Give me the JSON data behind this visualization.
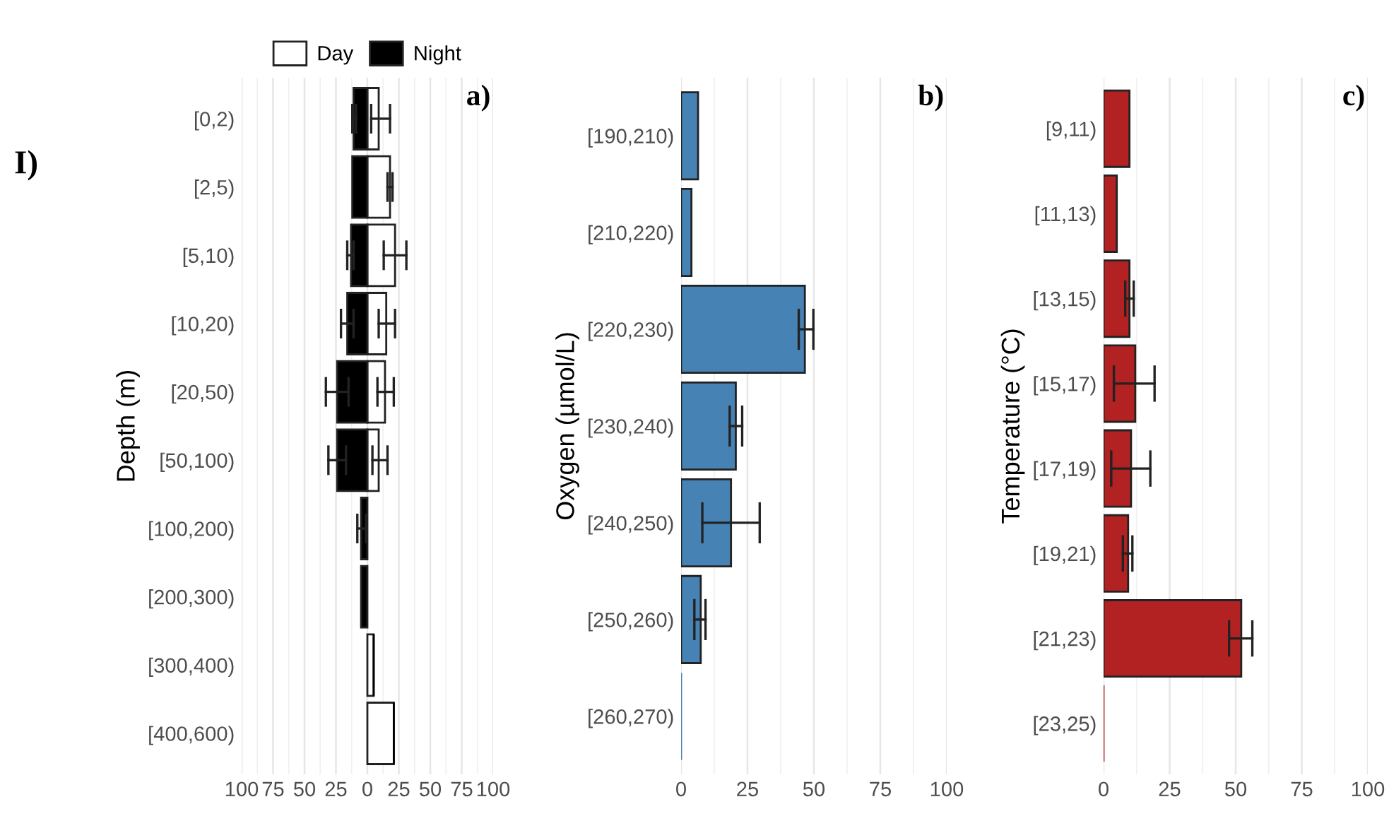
{
  "chart_data": [
    {
      "type": "bar",
      "orientation": "horizontal",
      "title": "a)",
      "ylabel": "Depth (m)",
      "annotations": [
        "I)"
      ],
      "categories": [
        "[0,2)",
        "[2,5)",
        "[5,10)",
        "[10,20)",
        "[20,50)",
        "[50,100)",
        "[100,200)",
        "[200,300)",
        "[300,400)",
        "[400,600)"
      ],
      "series": [
        {
          "name": "Day",
          "color": "#ffffff",
          "values": [
            9,
            18,
            22,
            15,
            14,
            9,
            0,
            0,
            5,
            21
          ],
          "errors": [
            [
              3,
              18
            ],
            [
              16,
              20
            ],
            [
              13,
              31
            ],
            [
              9,
              22
            ],
            [
              8,
              21
            ],
            [
              4,
              16
            ],
            null,
            null,
            null,
            null
          ]
        },
        {
          "name": "Night",
          "color": "#000000",
          "values": [
            -11,
            -12,
            -13,
            -16,
            -24,
            -24,
            -5,
            -5,
            0,
            0
          ],
          "errors": [
            [
              -12,
              -9
            ],
            null,
            [
              -16,
              -11
            ],
            [
              -21,
              -11
            ],
            [
              -33,
              -15
            ],
            [
              -31,
              -17
            ],
            [
              -8,
              -1
            ],
            null,
            null,
            null
          ]
        }
      ],
      "stacked": true,
      "xlim": [
        -100,
        100
      ],
      "xticks": [
        {
          "value": -100,
          "label": "100"
        },
        {
          "value": -75,
          "label": "75"
        },
        {
          "value": -50,
          "label": "50"
        },
        {
          "value": -25,
          "label": "25"
        },
        0,
        25,
        50,
        75,
        100
      ],
      "grid": "x",
      "legend": "top"
    },
    {
      "type": "bar",
      "orientation": "horizontal",
      "title": "b)",
      "ylabel": "Oxygen (µmol/L)",
      "categories": [
        "[190,210)",
        "[210,220)",
        "[220,230)",
        "[230,240)",
        "[240,250)",
        "[250,260)",
        "[260,270)"
      ],
      "series": [
        {
          "color": "#4682b4",
          "values": [
            6.4,
            3.9,
            46.6,
            20.6,
            18.8,
            7.4,
            0
          ],
          "errors": [
            null,
            null,
            [
              44.3,
              49.8
            ],
            [
              18.3,
              23.0
            ],
            [
              8.0,
              29.6
            ],
            [
              5.0,
              9.2
            ],
            null
          ]
        }
      ],
      "xlim": [
        0,
        100
      ],
      "xticks": [
        0,
        25,
        50,
        75,
        100
      ],
      "grid": "x"
    },
    {
      "type": "bar",
      "orientation": "horizontal",
      "title": "c)",
      "ylabel": "Temperature (°C)",
      "categories": [
        "[9,11)",
        "[11,13)",
        "[13,15)",
        "[15,17)",
        "[17,19)",
        "[19,21)",
        "[21,23)",
        "[23,25)"
      ],
      "series": [
        {
          "color": "#b22222",
          "values": [
            9.8,
            5.0,
            9.8,
            12.0,
            10.4,
            9.3,
            52.1,
            0
          ],
          "errors": [
            null,
            null,
            [
              8.2,
              11.4
            ],
            [
              3.9,
              19.3
            ],
            [
              2.9,
              17.7
            ],
            [
              7.3,
              10.9
            ],
            [
              47.5,
              56.3
            ],
            null
          ]
        }
      ],
      "xlim": [
        0,
        100
      ],
      "xticks": [
        0,
        25,
        50,
        75,
        100
      ],
      "grid": "x"
    }
  ]
}
